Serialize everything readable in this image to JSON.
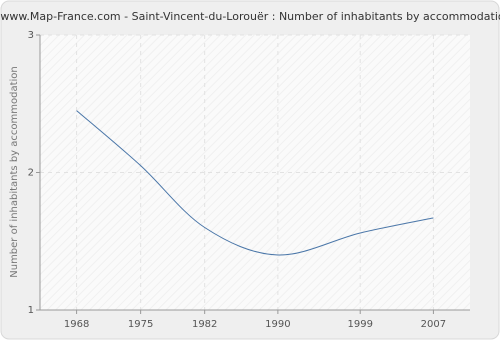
{
  "chart_data": {
    "type": "line",
    "title": "www.Map-France.com - Saint-Vincent-du-Lorouër : Number of inhabitants by accommodation",
    "y_label": "Number of inhabitants by accommodation",
    "x": [
      1968,
      1975,
      1982,
      1990,
      1999,
      2007
    ],
    "series": [
      {
        "name": "Number of inhabitants by accommodation",
        "color": "#4a76a8",
        "values": [
          2.45,
          2.05,
          1.6,
          1.4,
          1.56,
          1.67
        ]
      }
    ],
    "xlim": [
      1964,
      2011
    ],
    "xticks": [
      1968,
      1975,
      1982,
      1990,
      1999,
      2007
    ],
    "ylim": [
      1,
      3
    ],
    "yticks": [
      1,
      2,
      3
    ],
    "grid": true
  }
}
